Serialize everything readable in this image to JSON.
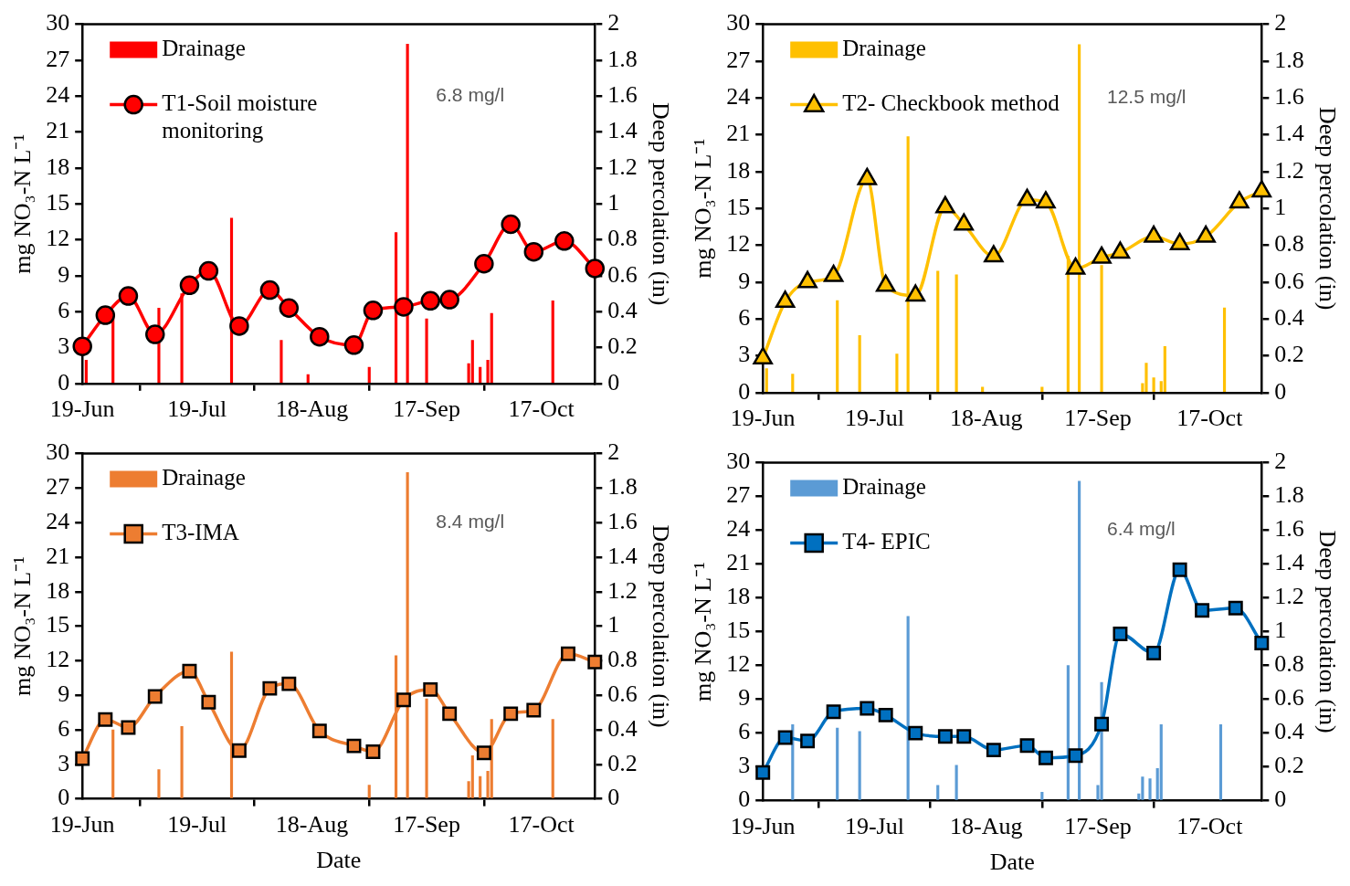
{
  "chart_data": [
    {
      "type": "line",
      "ylabel": "mg NO₃-N L⁻¹",
      "y2label": "Deep percolation (in)",
      "legend": "top left",
      "annotations": [
        "6.8 mg/l"
      ],
      "xlim": [
        "--06-19",
        "--10-31"
      ],
      "xticks": [
        {
          "value": "--06-19",
          "label": "19-Jun"
        },
        {
          "value": "--07-19",
          "label": "19-Jul"
        },
        {
          "value": "--08-18",
          "label": "18-Aug"
        },
        {
          "value": "--09-17",
          "label": "17-Sep"
        },
        {
          "value": "--10-17",
          "label": "17-Oct"
        }
      ],
      "ylim": [
        0,
        30
      ],
      "yticks": [
        0,
        3,
        6,
        9,
        12,
        15,
        18,
        21,
        24,
        27,
        30
      ],
      "y2lim": [
        0,
        2
      ],
      "y2ticks": [
        0,
        0.2,
        0.4,
        0.6,
        0.8,
        1,
        1.2,
        1.4,
        1.6,
        1.8,
        2
      ],
      "series": [
        {
          "name": "Drainage",
          "type": "bar",
          "axis": "y2",
          "color": "#ff0000",
          "x": [
            "--06-20",
            "--06-27",
            "--07-09",
            "--07-15",
            "--07-28",
            "--08-10",
            "--08-17",
            "--09-02",
            "--09-09",
            "--09-12",
            "--09-17",
            "--09-28",
            "--09-29",
            "--10-01",
            "--10-03",
            "--10-04",
            "--10-20"
          ],
          "values": [
            0.13,
            0.38,
            0.42,
            0.5,
            0.92,
            0.24,
            0.05,
            0.09,
            0.84,
            1.89,
            0.36,
            0.11,
            0.24,
            0.09,
            0.13,
            0.39,
            0.46
          ]
        },
        {
          "name": "T1-Soil moisture\nmonitoring",
          "marker": "circle",
          "color": "#ff0000",
          "x": [
            "--06-19",
            "--06-25",
            "--07-01",
            "--07-08",
            "--07-17",
            "--07-22",
            "--07-30",
            "--08-07",
            "--08-12",
            "--08-20",
            "--08-29",
            "--09-03",
            "--09-11",
            "--09-18",
            "--09-23",
            "--10-02",
            "--10-09",
            "--10-15",
            "--10-23",
            "--10-31"
          ],
          "values": [
            3.1,
            5.7,
            7.3,
            4.1,
            8.2,
            9.4,
            4.8,
            7.8,
            6.3,
            3.9,
            3.2,
            6.1,
            6.4,
            6.9,
            7.0,
            10.0,
            13.3,
            11.0,
            11.9,
            9.6
          ]
        }
      ]
    },
    {
      "type": "line",
      "ylabel": "mg NO₃-N L⁻¹",
      "y2label": "Deep percolation (in)",
      "legend": "top left",
      "annotations": [
        "12.5 mg/l"
      ],
      "xlim": [
        "--06-19",
        "--10-31"
      ],
      "xticks": [
        {
          "value": "--06-19",
          "label": "19-Jun"
        },
        {
          "value": "--07-19",
          "label": "19-Jul"
        },
        {
          "value": "--08-18",
          "label": "18-Aug"
        },
        {
          "value": "--09-17",
          "label": "17-Sep"
        },
        {
          "value": "--10-17",
          "label": "17-Oct"
        }
      ],
      "ylim": [
        0,
        30
      ],
      "yticks": [
        0,
        3,
        6,
        9,
        12,
        15,
        18,
        21,
        24,
        27,
        30
      ],
      "y2lim": [
        0,
        2
      ],
      "y2ticks": [
        0,
        0.2,
        0.4,
        0.6,
        0.8,
        1,
        1.2,
        1.4,
        1.6,
        1.8,
        2
      ],
      "series": [
        {
          "name": "Drainage",
          "type": "bar",
          "axis": "y2",
          "color": "#ffc000",
          "x": [
            "--06-20",
            "--06-27",
            "--07-09",
            "--07-15",
            "--07-25",
            "--07-28",
            "--08-05",
            "--08-10",
            "--08-17",
            "--09-02",
            "--09-09",
            "--09-12",
            "--09-18",
            "--09-29",
            "--09-30",
            "--10-02",
            "--10-04",
            "--10-05",
            "--10-21"
          ],
          "values": [
            0.13,
            0.1,
            0.5,
            0.31,
            0.21,
            1.39,
            0.66,
            0.64,
            0.03,
            0.03,
            0.74,
            1.89,
            0.69,
            0.05,
            0.16,
            0.08,
            0.06,
            0.25,
            0.46
          ]
        },
        {
          "name": "T2- Checkbook method",
          "marker": "triangle",
          "color": "#ffc000",
          "x": [
            "--06-19",
            "--06-25",
            "--07-01",
            "--07-08",
            "--07-17",
            "--07-22",
            "--07-30",
            "--08-07",
            "--08-12",
            "--08-20",
            "--08-29",
            "--09-03",
            "--09-11",
            "--09-18",
            "--09-23",
            "--10-02",
            "--10-09",
            "--10-16",
            "--10-25",
            "--10-31"
          ],
          "values": [
            2.8,
            7.4,
            9.0,
            9.5,
            17.4,
            8.7,
            7.9,
            15.1,
            13.7,
            11.1,
            15.7,
            15.5,
            10.1,
            11.0,
            11.4,
            12.7,
            12.1,
            12.7,
            15.5,
            16.4
          ]
        }
      ]
    },
    {
      "type": "line",
      "xlabel": "Date",
      "ylabel": "mg NO₃-N L⁻¹",
      "y2label": "Deep percolation (in)",
      "legend": "top left",
      "annotations": [
        "8.4 mg/l"
      ],
      "xlim": [
        "--06-19",
        "--10-31"
      ],
      "xticks": [
        {
          "value": "--06-19",
          "label": "19-Jun"
        },
        {
          "value": "--07-19",
          "label": "19-Jul"
        },
        {
          "value": "--08-18",
          "label": "18-Aug"
        },
        {
          "value": "--09-17",
          "label": "17-Sep"
        },
        {
          "value": "--10-17",
          "label": "17-Oct"
        }
      ],
      "ylim": [
        0,
        30
      ],
      "yticks": [
        0,
        3,
        6,
        9,
        12,
        15,
        18,
        21,
        24,
        27,
        30
      ],
      "y2lim": [
        0,
        2
      ],
      "y2ticks": [
        0,
        0.2,
        0.4,
        0.6,
        0.8,
        1,
        1.2,
        1.4,
        1.6,
        1.8,
        2
      ],
      "series": [
        {
          "name": "Drainage",
          "type": "bar",
          "axis": "y2",
          "color": "#ed7d31",
          "x": [
            "--06-27",
            "--07-09",
            "--07-15",
            "--07-28",
            "--09-02",
            "--09-09",
            "--09-12",
            "--09-17",
            "--09-28",
            "--09-29",
            "--10-01",
            "--10-03",
            "--10-04",
            "--10-20"
          ],
          "values": [
            0.4,
            0.17,
            0.42,
            0.85,
            0.08,
            0.83,
            1.89,
            0.58,
            0.1,
            0.25,
            0.13,
            0.16,
            0.46,
            0.46
          ]
        },
        {
          "name": "T3-IMA",
          "marker": "square",
          "color": "#ed7d31",
          "x": [
            "--06-19",
            "--06-25",
            "--07-01",
            "--07-08",
            "--07-17",
            "--07-22",
            "--07-30",
            "--08-07",
            "--08-12",
            "--08-20",
            "--08-29",
            "--09-03",
            "--09-11",
            "--09-18",
            "--09-23",
            "--10-02",
            "--10-09",
            "--10-15",
            "--10-24",
            "--10-31"
          ],
          "values": [
            3.5,
            6.9,
            6.2,
            8.9,
            11.1,
            8.4,
            4.2,
            9.6,
            10.0,
            5.9,
            4.6,
            4.1,
            8.6,
            9.5,
            7.4,
            4.0,
            7.4,
            7.7,
            12.6,
            11.9
          ]
        }
      ]
    },
    {
      "type": "line",
      "xlabel": "Date",
      "ylabel": "mg NO₃-N L⁻¹",
      "y2label": "Deep percolation (in)",
      "legend": "top left",
      "annotations": [
        "6.4 mg/l"
      ],
      "xlim": [
        "--06-19",
        "--10-31"
      ],
      "xticks": [
        {
          "value": "--06-19",
          "label": "19-Jun"
        },
        {
          "value": "--07-19",
          "label": "19-Jul"
        },
        {
          "value": "--08-18",
          "label": "18-Aug"
        },
        {
          "value": "--09-17",
          "label": "17-Sep"
        },
        {
          "value": "--10-17",
          "label": "17-Oct"
        }
      ],
      "ylim": [
        0,
        30
      ],
      "yticks": [
        0,
        3,
        6,
        9,
        12,
        15,
        18,
        21,
        24,
        27,
        30
      ],
      "y2lim": [
        0,
        2
      ],
      "y2ticks": [
        0,
        0.2,
        0.4,
        0.6,
        0.8,
        1,
        1.2,
        1.4,
        1.6,
        1.8,
        2
      ],
      "series": [
        {
          "name": "Drainage",
          "type": "bar",
          "axis": "y2",
          "color": "#5b9bd5",
          "x": [
            "--06-27",
            "--07-09",
            "--07-15",
            "--07-28",
            "--08-05",
            "--08-10",
            "--09-02",
            "--09-09",
            "--09-12",
            "--09-17",
            "--09-18",
            "--09-28",
            "--09-29",
            "--10-01",
            "--10-03",
            "--10-04",
            "--10-20"
          ],
          "values": [
            0.45,
            0.43,
            0.41,
            1.09,
            0.09,
            0.21,
            0.05,
            0.8,
            1.89,
            0.09,
            0.7,
            0.04,
            0.14,
            0.13,
            0.19,
            0.45,
            0.45
          ]
        },
        {
          "name": "T4- EPIC",
          "marker": "square",
          "color": "#0070c0",
          "x": [
            "--06-19",
            "--06-25",
            "--07-01",
            "--07-08",
            "--07-17",
            "--07-22",
            "--07-30",
            "--08-07",
            "--08-12",
            "--08-20",
            "--08-29",
            "--09-03",
            "--09-11",
            "--09-18",
            "--09-23",
            "--10-02",
            "--10-09",
            "--10-15",
            "--10-24",
            "--10-31"
          ],
          "values": [
            2.5,
            5.6,
            5.3,
            7.9,
            8.2,
            7.6,
            6.0,
            5.7,
            5.7,
            4.5,
            4.9,
            3.8,
            4.0,
            6.8,
            14.8,
            13.1,
            20.5,
            16.9,
            17.1,
            14.0
          ]
        }
      ]
    }
  ]
}
